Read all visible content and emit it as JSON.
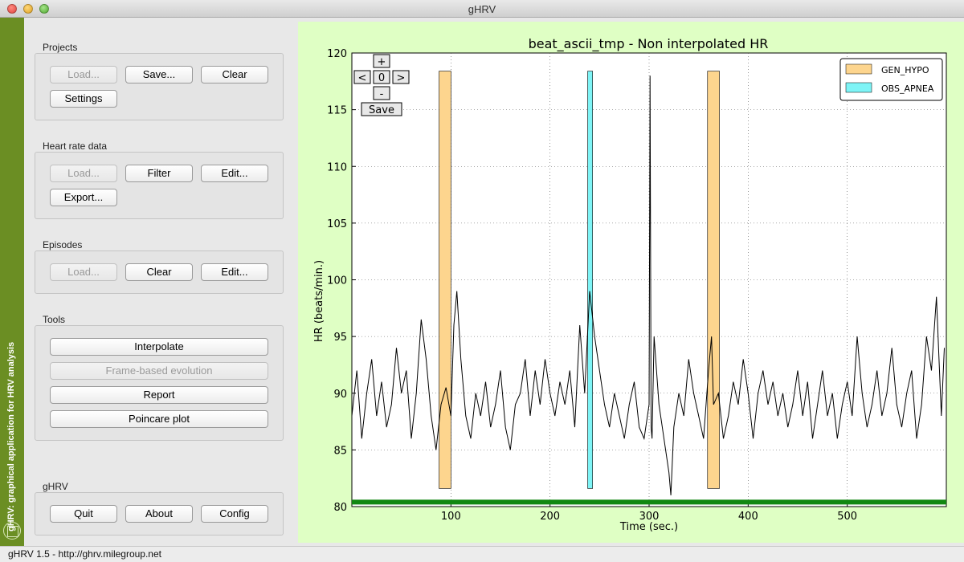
{
  "window": {
    "title": "gHRV"
  },
  "sidebar": {
    "vertical_text": "gHRV: graphical application for HRV analysis",
    "color": "#6b8e23"
  },
  "groups": {
    "projects": {
      "label": "Projects",
      "load": "Load...",
      "save": "Save...",
      "clear": "Clear",
      "settings": "Settings"
    },
    "heart_rate": {
      "label": "Heart rate data",
      "load": "Load...",
      "filter": "Filter",
      "edit": "Edit...",
      "export": "Export..."
    },
    "episodes": {
      "label": "Episodes",
      "load": "Load...",
      "clear": "Clear",
      "edit": "Edit..."
    },
    "tools": {
      "label": "Tools",
      "interpolate": "Interpolate",
      "frame": "Frame-based evolution",
      "report": "Report",
      "poincare": "Poincare plot"
    },
    "ghrv": {
      "label": "gHRV",
      "quit": "Quit",
      "about": "About",
      "config": "Config"
    }
  },
  "plot_controls": {
    "plus": "+",
    "minus": "-",
    "left": "<",
    "right": ">",
    "zero": "0",
    "save": "Save"
  },
  "status": {
    "text": "gHRV 1.5 - http://ghrv.milegroup.net"
  },
  "colors": {
    "plot_background": "#dfffc4",
    "gen_hypo": "#fdd58e",
    "obs_apnea": "#7ef4f6",
    "baseline": "#118811"
  },
  "chart_data": {
    "type": "line",
    "title": "beat_ascii_tmp - Non interpolated HR",
    "xlabel": "Time (sec.)",
    "ylabel": "HR (beats/min.)",
    "xlim": [
      0,
      600
    ],
    "ylim": [
      80,
      120
    ],
    "xticks": [
      100,
      200,
      300,
      400,
      500
    ],
    "yticks": [
      80,
      85,
      90,
      95,
      100,
      105,
      110,
      115,
      120
    ],
    "grid": true,
    "legend_position": "top-right",
    "legend": [
      {
        "name": "GEN_HYPO",
        "color": "#fdd58e"
      },
      {
        "name": "OBS_APNEA",
        "color": "#7ef4f6"
      }
    ],
    "episodes": [
      {
        "type": "GEN_HYPO",
        "start": 88,
        "end": 100,
        "ymin": 81.6,
        "ymax": 118.4
      },
      {
        "type": "OBS_APNEA",
        "start": 238,
        "end": 243,
        "ymin": 81.6,
        "ymax": 118.4
      },
      {
        "type": "GEN_HYPO",
        "start": 359,
        "end": 371,
        "ymin": 81.6,
        "ymax": 118.4
      }
    ],
    "series": [
      {
        "x": [
          0,
          5,
          10,
          15,
          20,
          25,
          30,
          35,
          40,
          45,
          50,
          55,
          60,
          65,
          70,
          75,
          80,
          85,
          90,
          95,
          100,
          103,
          106,
          110,
          115,
          120,
          125,
          130,
          135,
          140,
          145,
          150,
          155,
          160,
          165,
          170,
          175,
          180,
          185,
          190,
          195,
          200,
          205,
          210,
          215,
          220,
          225,
          230,
          235,
          240,
          245,
          250,
          255,
          260,
          265,
          270,
          275,
          280,
          285,
          290,
          295,
          300,
          301,
          302,
          303,
          305,
          310,
          315,
          320,
          322,
          325,
          330,
          335,
          340,
          345,
          350,
          355,
          360,
          363,
          365,
          370,
          375,
          380,
          385,
          390,
          395,
          400,
          405,
          410,
          415,
          420,
          425,
          430,
          435,
          440,
          445,
          450,
          455,
          460,
          465,
          470,
          475,
          480,
          485,
          490,
          495,
          500,
          505,
          510,
          515,
          520,
          525,
          530,
          535,
          540,
          545,
          550,
          555,
          560,
          565,
          570,
          575,
          580,
          585,
          590,
          595,
          598
        ],
        "y": [
          88,
          92,
          86,
          90,
          93,
          88,
          91,
          87,
          89,
          94,
          90,
          92,
          86,
          90,
          96.5,
          93,
          88,
          85,
          89,
          90.5,
          88,
          96,
          99,
          93,
          88,
          86,
          90,
          88,
          91,
          87,
          89,
          92,
          87,
          85,
          89,
          90,
          93,
          88,
          92,
          89,
          93,
          90,
          88,
          91,
          89,
          92,
          87,
          96,
          90,
          99,
          95,
          92,
          89,
          87,
          90,
          88,
          86,
          89,
          91,
          87,
          86,
          89,
          118,
          87,
          86,
          95,
          89,
          86,
          83,
          81,
          87,
          90,
          88,
          93,
          90,
          88,
          86,
          92,
          95,
          89,
          90,
          86,
          88,
          91,
          89,
          93,
          90,
          86,
          90,
          92,
          89,
          91,
          88,
          90,
          87,
          89,
          92,
          88,
          91,
          86,
          89,
          92,
          88,
          90,
          86,
          89,
          91,
          88,
          95,
          90,
          87,
          89,
          92,
          88,
          90,
          94,
          89,
          87,
          90,
          92,
          86,
          89,
          95,
          92,
          98.5,
          88,
          94
        ]
      }
    ]
  }
}
